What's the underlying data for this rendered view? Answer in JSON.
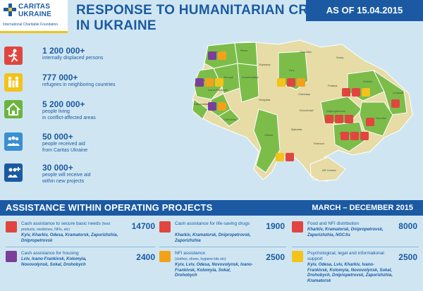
{
  "logo": {
    "line1": "CARITAS",
    "line2": "UKRAINE",
    "line3": "International Charitable Foundation"
  },
  "title": {
    "line1": "RESPONSE TO HUMANITARIAN CRISIS",
    "line2": "IN UKRAINE"
  },
  "date_badge": "AS OF 15.04.2015",
  "stats": [
    {
      "icon": "person-running-icon",
      "color": "#e0463f",
      "value": "1 200 000+",
      "desc": "internally displaced persons"
    },
    {
      "icon": "family-icon",
      "color": "#f3c21b",
      "value": "777 000+",
      "desc": "refugees in neighboring countries"
    },
    {
      "icon": "house-icon",
      "color": "#6bb53f",
      "value": "5 200 000+",
      "desc": "people living\nin conflict-affected areas"
    },
    {
      "icon": "people-group-icon",
      "color": "#3a8fd1",
      "value": "50 000+",
      "desc": "people received aid\nfrom Caritas Ukraine"
    },
    {
      "icon": "people-plus-icon",
      "color": "#1b5aa3",
      "value": "30 000+",
      "desc": "people will receive aid\nwithin new projects"
    }
  ],
  "map": {
    "colors": {
      "green": "#7cbd4a",
      "beige": "#e7dba6",
      "border": "#ffffff"
    },
    "oblasts": [
      "Volyn",
      "Rivne",
      "Lviv",
      "Ternopil",
      "Zakarpattia",
      "Ivano-Frankivsk",
      "Chernivtsi",
      "Khmelnytskyi",
      "Zhytomyr",
      "Kyiv",
      "Chernihiv",
      "Sumy",
      "Poltava",
      "Kharkiv",
      "Luhansk",
      "Vinnytsia",
      "Cherkasy",
      "Kirovohrad",
      "Dnipropetrovsk",
      "Donetsk",
      "Odesa",
      "Mykolaiv",
      "Zaporizhzhia",
      "Kherson",
      "AR Crimea"
    ]
  },
  "banner": {
    "title": "ASSISTANCE WITHIN OPERATING PROJECTS",
    "period": "MARCH – DECEMBER 2015"
  },
  "projects": [
    {
      "icon": "cash-basic-needs-icon",
      "color": "#e0463f",
      "title": "Cash assistance to secure basic needs",
      "sub": "(food products, medicines, NFIs, etc)",
      "locations": "Kyiv, Kharkiv, Odesa, Kramatorsk, Zaporizhzhia, Dnipropetrovsk",
      "value": "14700"
    },
    {
      "icon": "medical-caduceus-icon",
      "color": "#e0463f",
      "title": "Cash assistance for life-saving drugs",
      "sub": "",
      "locations": "Kharkiv, Kramatorsk, Dnipropetrovsk, Zaporizhzhia",
      "value": "1900"
    },
    {
      "icon": "food-distribution-icon",
      "color": "#e0463f",
      "title": "Food and NFI distribution",
      "sub": "",
      "locations": "Kharkiv, Kramatorsk, Dnipropetrovsk, Zaporizhzhia, NGCAs",
      "value": "8000"
    },
    {
      "icon": "housing-icon",
      "color": "#7a3f98",
      "title": "Cash assistance for housing",
      "sub": "",
      "locations": "Lviv, Ivano-Frankivsk, Kolomyia, Novovolynsk, Sokal, Drohobych",
      "value": "2400"
    },
    {
      "icon": "nfi-clothes-icon",
      "color": "#f3a11b",
      "title": "NFI assistance",
      "sub": "(clothes, shoes, hygiene kits etc)",
      "locations": "Kyiv, Lviv, Odesa, Novovolynsk, Ivano-Frankivsk, Kolomyia, Sokal, Drohobych",
      "value": "2500"
    },
    {
      "icon": "psychological-support-icon",
      "color": "#f3c21b",
      "title": "Psychological, legal and informational support",
      "sub": "",
      "locations": "Kyiv, Odesa, Lviv, Kharkiv, Ivano-Frankivsk, Kolomyia, Novovolynsk, Sokal, Drohobych, Dnipropetrovsk, Zaporizhzhia, Kramatorsk",
      "value": "2500"
    }
  ]
}
